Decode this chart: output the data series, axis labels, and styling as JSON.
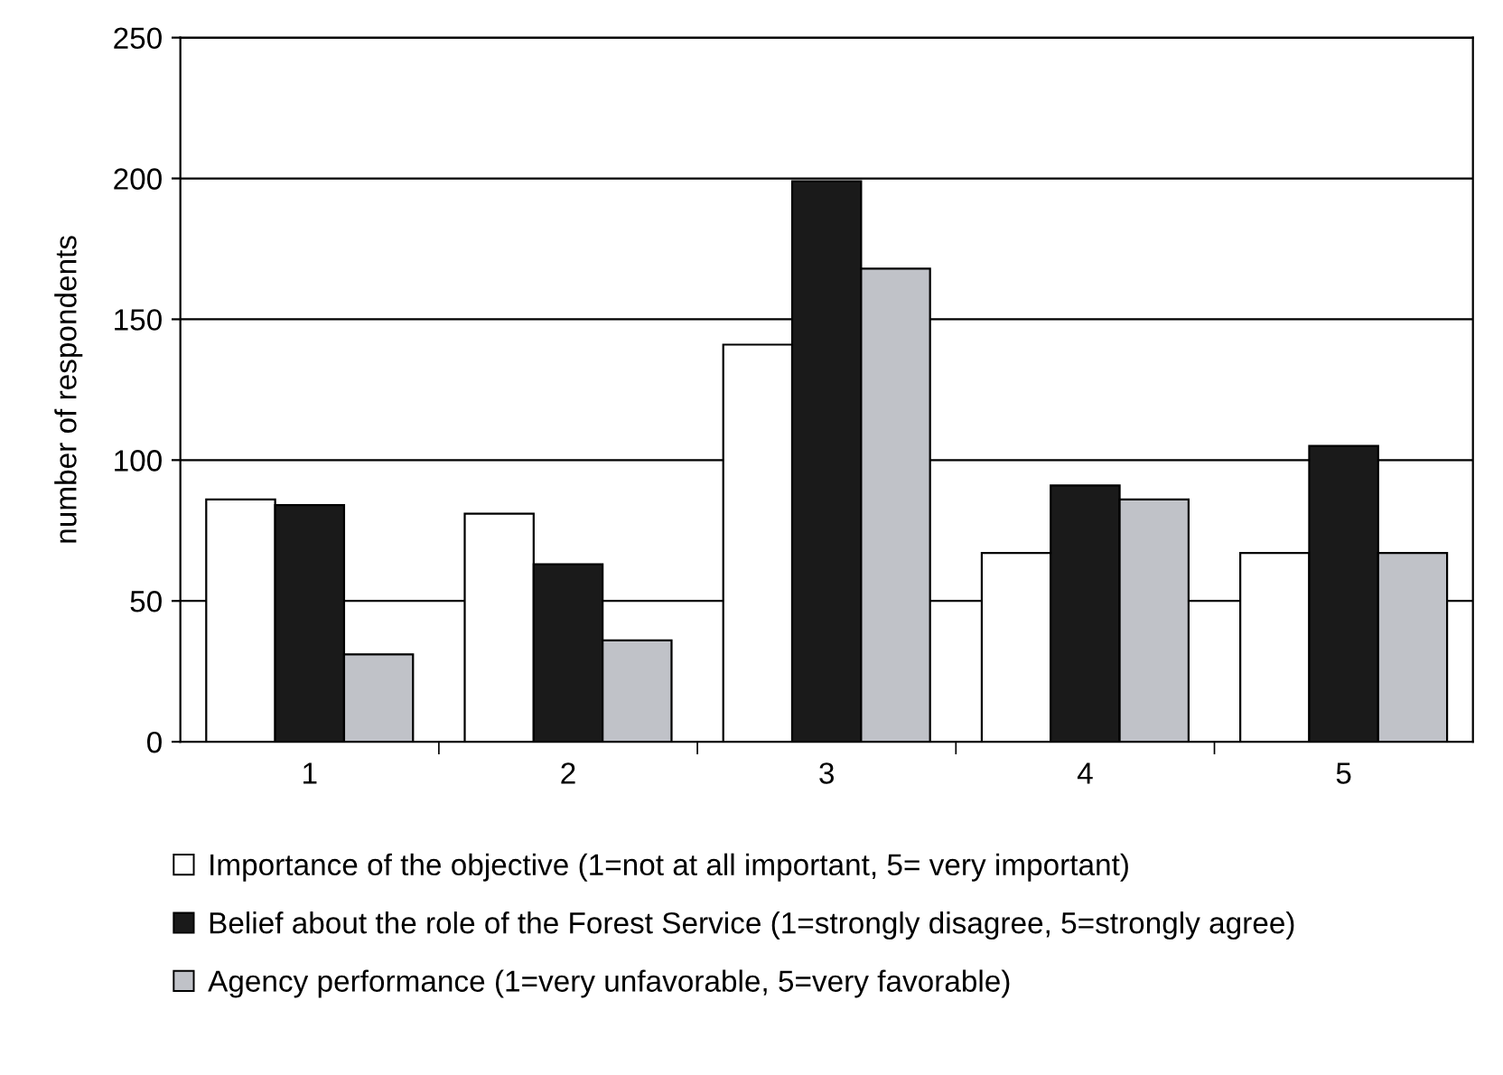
{
  "chart_data": {
    "type": "bar",
    "ylabel": "number of respondents",
    "categories": [
      "1",
      "2",
      "3",
      "4",
      "5"
    ],
    "series": [
      {
        "name": "Importance of the objective (1=not at all important, 5= very important)",
        "color": "#ffffff",
        "values": [
          86,
          81,
          141,
          67,
          67
        ]
      },
      {
        "name": "Belief about the role of the Forest Service (1=strongly disagree, 5=strongly agree)",
        "color": "#1a1a1a",
        "values": [
          84,
          63,
          199,
          91,
          105
        ]
      },
      {
        "name": "Agency performance (1=very unfavorable, 5=very favorable)",
        "color": "#c0c2c8",
        "values": [
          31,
          36,
          168,
          86,
          67
        ]
      }
    ],
    "ylim": [
      0,
      250
    ],
    "yticks": [
      0,
      50,
      100,
      150,
      200,
      250
    ],
    "grid": "y",
    "legend": "bottom"
  }
}
